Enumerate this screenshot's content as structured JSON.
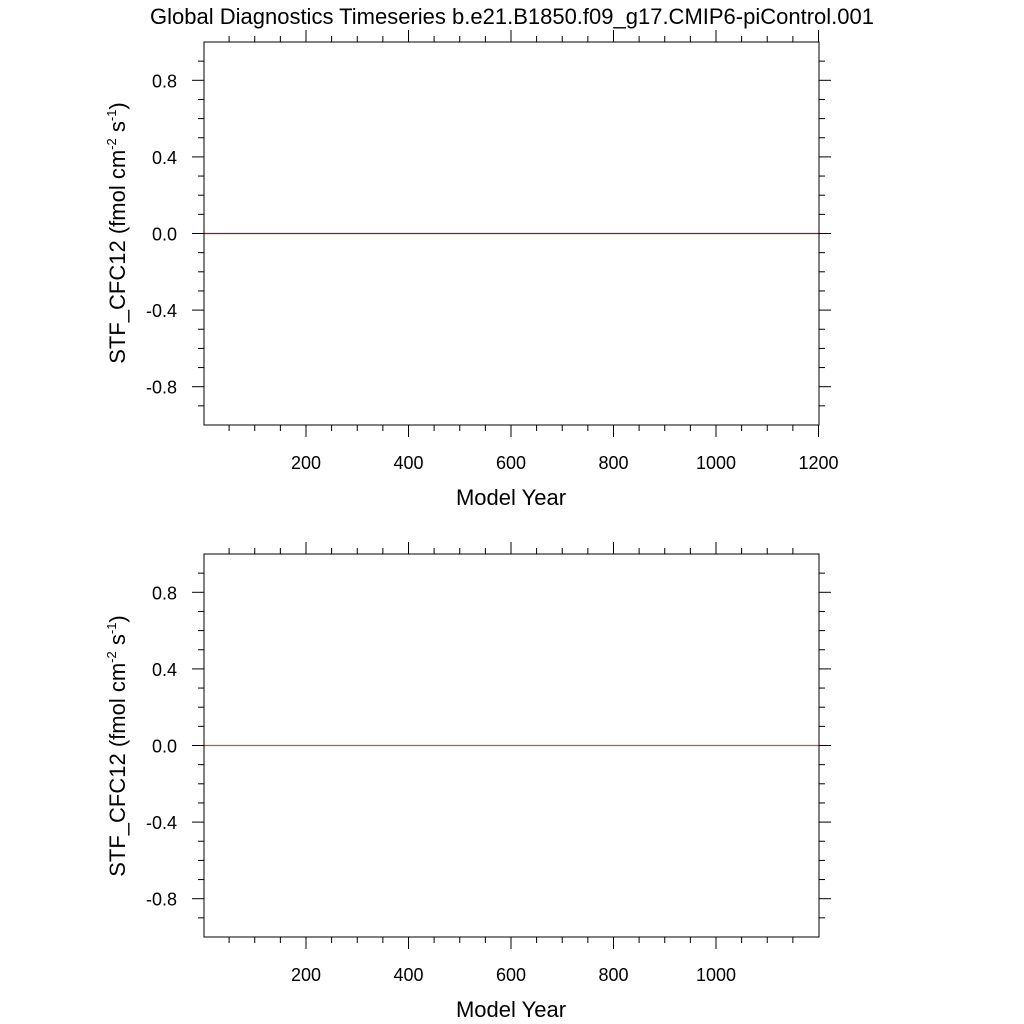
{
  "title": "Global Diagnostics Timeseries b.e21.B1850.f09_g17.CMIP6-piControl.001",
  "chart_data": [
    {
      "type": "line",
      "xlabel": "Model Year",
      "ylabel": "STF_CFC12 (fmol cm",
      "ylabel_sup1": "-2",
      "ylabel_mid": " s",
      "ylabel_sup2": "-1",
      "ylabel_end": ")",
      "xlim": [
        1,
        1201
      ],
      "ylim": [
        -1.0,
        1.0
      ],
      "xticks": [
        200,
        400,
        600,
        800,
        1000,
        1200
      ],
      "xtick_labels": [
        "200",
        "400",
        "600",
        "800",
        "1000",
        "1200"
      ],
      "yticks": [
        0.8,
        0.4,
        0.0,
        -0.4,
        -0.8
      ],
      "ytick_labels": [
        "0.8",
        "0.4",
        "0.0",
        "-0.4",
        "-0.8"
      ],
      "series": [
        {
          "color": "#8b1a1a",
          "x": [
            1,
            1201
          ],
          "y": [
            0.0,
            0.0
          ]
        }
      ]
    },
    {
      "type": "line",
      "xlabel": "Model Year",
      "ylabel": "STF_CFC12 (fmol cm",
      "ylabel_sup1": "-2",
      "ylabel_mid": " s",
      "ylabel_sup2": "-1",
      "ylabel_end": ")",
      "xlim": [
        1,
        1201
      ],
      "ylim": [
        -1.0,
        1.0
      ],
      "xticks": [
        200,
        400,
        600,
        800,
        1000
      ],
      "xtick_labels": [
        "200",
        "400",
        "600",
        "800",
        "1000"
      ],
      "yticks": [
        0.8,
        0.4,
        0.0,
        -0.4,
        -0.8
      ],
      "ytick_labels": [
        "0.8",
        "0.4",
        "0.0",
        "-0.4",
        "-0.8"
      ],
      "series": [
        {
          "color": "#c0583a",
          "x": [
            1,
            1201
          ],
          "y": [
            0.0,
            0.0
          ]
        }
      ]
    }
  ]
}
